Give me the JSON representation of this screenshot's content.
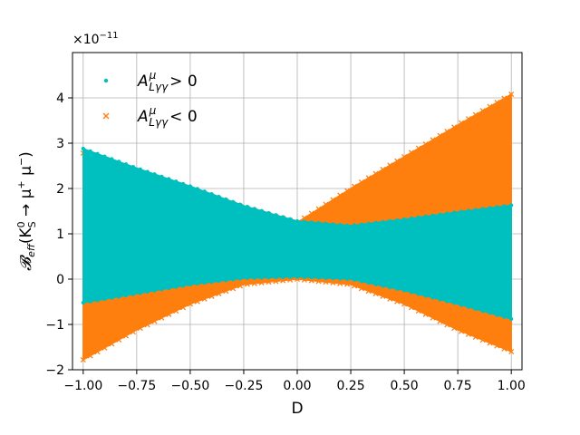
{
  "chart_data": {
    "type": "scatter",
    "title": "",
    "xlabel": "D",
    "ylabel": "𝓑eff(K0S→μ+μ−)",
    "y_scale_label": "×10−11",
    "xlim": [
      -1.05,
      1.05
    ],
    "ylim": [
      -2.0,
      5.0
    ],
    "grid": true,
    "legend_position": "top-left",
    "x_ticks": [
      -1.0,
      -0.75,
      -0.5,
      -0.25,
      0.0,
      0.25,
      0.5,
      0.75,
      1.0
    ],
    "x_tick_labels": [
      "−1.00",
      "−0.75",
      "−0.50",
      "−0.25",
      "0.00",
      "0.25",
      "0.50",
      "0.75",
      "1.00"
    ],
    "y_ticks": [
      -2,
      -1,
      0,
      1,
      2,
      3,
      4
    ],
    "y_tick_labels": [
      "−2",
      "−1",
      "0",
      "1",
      "2",
      "3",
      "4"
    ],
    "series": [
      {
        "name": "A^μ_{Lγγ} > 0",
        "marker": "dot",
        "color": "#00bfbf",
        "x": [
          -1.0,
          -0.75,
          -0.5,
          -0.25,
          0.0,
          0.25,
          0.5,
          0.75,
          1.0
        ],
        "y_upper": [
          2.88,
          2.45,
          2.05,
          1.62,
          1.28,
          1.18,
          1.32,
          1.48,
          1.63
        ],
        "y_lower": [
          -0.52,
          -0.32,
          -0.12,
          0.02,
          0.05,
          0.0,
          -0.25,
          -0.55,
          -0.88
        ]
      },
      {
        "name": "A^μ_{Lγγ} < 0",
        "marker": "x",
        "color": "#ff7f0e",
        "x": [
          -1.0,
          -0.75,
          -0.5,
          -0.25,
          0.0,
          0.25,
          0.5,
          0.75,
          1.0
        ],
        "y_upper": [
          2.78,
          2.38,
          2.0,
          1.58,
          1.25,
          2.0,
          2.7,
          3.4,
          4.08
        ],
        "y_lower": [
          -1.78,
          -1.12,
          -0.55,
          -0.12,
          0.0,
          -0.12,
          -0.55,
          -1.12,
          -1.6
        ]
      }
    ]
  },
  "legend": {
    "pos_prefix": "A",
    "pos_sup": "μ",
    "pos_sub": "Lγγ",
    "pos_rel": "> 0",
    "neg_prefix": "A",
    "neg_sup": "μ",
    "neg_sub": "Lγγ",
    "neg_rel": "< 0"
  },
  "yaxis": {
    "label_B": "𝓑",
    "label_sub": "eff",
    "label_open": "(K",
    "label_K_sup": "0",
    "label_K_sub": "S",
    "label_arrow": " → μ",
    "label_mu_plus": "+",
    "label_mu": " μ",
    "label_mu_minus": "−",
    "label_close": ")",
    "offset_base": "×10",
    "offset_exp": "−11"
  },
  "xaxis": {
    "label": "D"
  }
}
